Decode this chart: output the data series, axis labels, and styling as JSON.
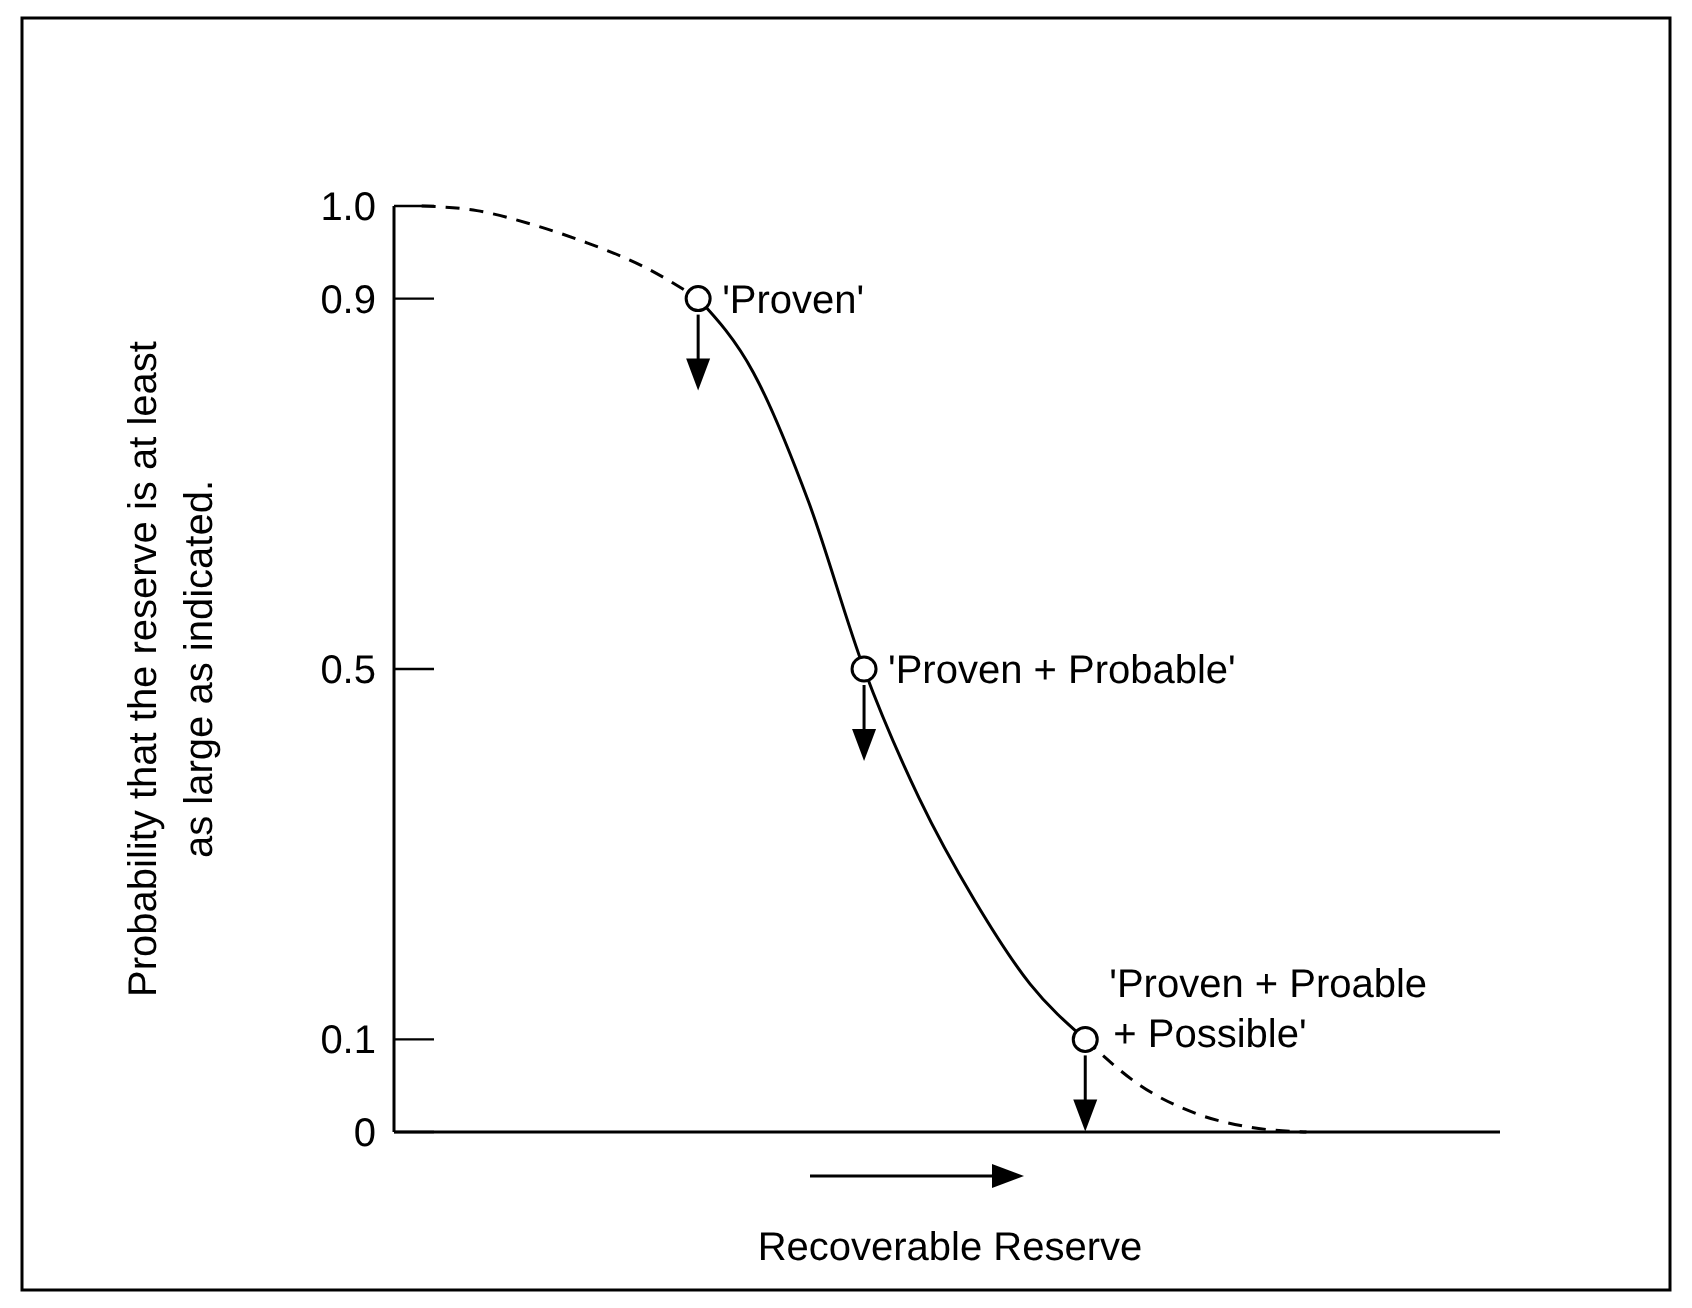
{
  "chart_data": {
    "type": "line",
    "xlabel": "Recoverable Reserve",
    "ylabel": "Probability that the reserve is at least\nas large as indicated.",
    "categories": [
      null,
      null,
      null,
      null,
      null,
      null,
      null,
      null,
      null,
      null,
      null,
      null,
      null,
      null,
      null,
      null,
      null,
      null,
      null,
      null
    ],
    "series": [
      {
        "color": "#000000",
        "line_style": "dashed",
        "values": [
          1.0,
          0.995,
          0.98,
          0.96,
          0.935,
          0.9,
          null,
          null,
          null,
          null,
          null,
          null,
          null,
          null,
          null,
          null,
          null,
          null,
          null,
          null
        ]
      },
      {
        "color": "#000000",
        "line_style": "solid",
        "values": [
          null,
          null,
          null,
          null,
          null,
          0.9,
          0.82,
          0.68,
          0.5,
          0.36,
          0.25,
          0.16,
          0.1,
          null,
          null,
          null,
          null,
          null,
          null,
          null
        ]
      },
      {
        "color": "#000000",
        "line_style": "dashed",
        "values": [
          null,
          null,
          null,
          null,
          null,
          null,
          null,
          null,
          null,
          null,
          null,
          null,
          0.1,
          0.05,
          0.02,
          0.005,
          0,
          null,
          null,
          null
        ]
      },
      {
        "type": "scatter",
        "color": "#000000",
        "marker": "circle",
        "values": [
          null,
          null,
          null,
          null,
          null,
          0.9,
          null,
          null,
          0.5,
          null,
          null,
          null,
          0.1,
          null,
          null,
          null,
          null,
          null,
          null,
          null
        ]
      }
    ],
    "ylim": [
      0,
      1
    ],
    "yticks": [
      0,
      0.1,
      0.5,
      0.9,
      {
        "value": 1,
        "label": "1.0"
      }
    ],
    "tick_labels": "y",
    "annotations": [
      "'Proven'",
      "'Proven + Probable'",
      "'Proven + Proable\n+ Possible'"
    ]
  }
}
